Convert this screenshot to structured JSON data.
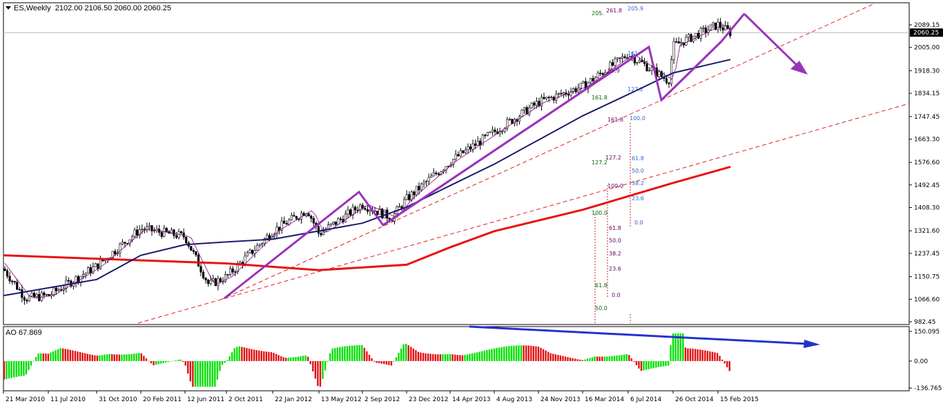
{
  "header": {
    "symbol": "ES,Weekly",
    "ohlc": "2102.00 2106.50 2060.00 2060.25"
  },
  "ao": {
    "label": "AO 67.869",
    "ticks": [
      "150.095",
      "0.00",
      "-136.765"
    ]
  },
  "price": {
    "current_label": "2060.25",
    "current_value": 2060.25
  },
  "colors": {
    "up_bar": "#00e000",
    "down_bar": "#e01010",
    "ma200": "#e81010",
    "ma50": "#1a1a6e",
    "ma_fast": "#800080",
    "pattern": "#9933bb",
    "trend_arrow": "#2233cc",
    "trendline": "#e02020",
    "fib_green": "#006600",
    "fib_purple": "#660066",
    "fib_blue": "#3366cc"
  },
  "chart_data": {
    "type": "line",
    "x_ticks": [
      "21 Mar 2010",
      "11 Jul 2010",
      "31 Oct 2010",
      "20 Feb 2011",
      "12 Jun 2011",
      "2 Oct 2011",
      "22 Jan 2012",
      "13 May 2012",
      "2 Sep 2012",
      "23 Dec 2012",
      "14 Apr 2013",
      "4 Aug 2013",
      "24 Nov 2013",
      "16 Mar 2014",
      "6 Jul 2014",
      "26 Oct 2014",
      "15 Feb 2015"
    ],
    "y_ticks": [
      "2089.15",
      "2005.00",
      "1918.30",
      "1834.15",
      "1747.45",
      "1663.30",
      "1576.60",
      "1492.45",
      "1408.30",
      "1321.60",
      "1237.45",
      "1150.75",
      "1066.60",
      "982.45"
    ],
    "ylim": [
      982.45,
      2089.15
    ],
    "price_path": [
      [
        "21 Mar 2010",
        1180
      ],
      [
        "May 2010",
        1070
      ],
      [
        "11 Jul 2010",
        1080
      ],
      [
        "31 Oct 2010",
        1190
      ],
      [
        "20 Feb 2011",
        1330
      ],
      [
        "12 Jun 2011",
        1300
      ],
      [
        "Aug 2011",
        1120
      ],
      [
        "2 Oct 2011",
        1150
      ],
      [
        "22 Jan 2012",
        1320
      ],
      [
        "Apr 2012",
        1400
      ],
      [
        "13 May 2012",
        1310
      ],
      [
        "2 Sep 2012",
        1420
      ],
      [
        "Nov 2012",
        1370
      ],
      [
        "23 Dec 2012",
        1440
      ],
      [
        "14 Apr 2013",
        1580
      ],
      [
        "4 Aug 2013",
        1690
      ],
      [
        "24 Nov 2013",
        1800
      ],
      [
        "16 Mar 2014",
        1860
      ],
      [
        "6 Jul 2014",
        1980
      ],
      [
        "Oct 2014",
        1880
      ],
      [
        "26 Oct 2014",
        2010
      ],
      [
        "15 Feb 2015",
        2090
      ],
      [
        "Mar 2015",
        2060
      ]
    ],
    "series": [
      {
        "name": "ma200",
        "values": [
          [
            "21 Mar 2010",
            1230
          ],
          [
            "2 Oct 2011",
            1200
          ],
          [
            "13 May 2012",
            1175
          ],
          [
            "23 Dec 2012",
            1195
          ],
          [
            "14 Apr 2013",
            1260
          ],
          [
            "4 Aug 2013",
            1320
          ],
          [
            "16 Mar 2014",
            1400
          ],
          [
            "26 Oct 2014",
            1500
          ],
          [
            "Mar 2015",
            1560
          ]
        ]
      },
      {
        "name": "ma50",
        "values": [
          [
            "21 Mar 2010",
            1080
          ],
          [
            "31 Oct 2010",
            1140
          ],
          [
            "20 Feb 2011",
            1230
          ],
          [
            "12 Jun 2011",
            1270
          ],
          [
            "2 Oct 2011",
            1280
          ],
          [
            "22 Jan 2012",
            1290
          ],
          [
            "2 Sep 2012",
            1350
          ],
          [
            "23 Dec 2012",
            1410
          ],
          [
            "14 Apr 2013",
            1490
          ],
          [
            "4 Aug 2013",
            1570
          ],
          [
            "24 Nov 2013",
            1660
          ],
          [
            "16 Mar 2014",
            1750
          ],
          [
            "6 Jul 2014",
            1830
          ],
          [
            "26 Oct 2014",
            1910
          ],
          [
            "Mar 2015",
            1960
          ]
        ]
      }
    ],
    "fib_labels": {
      "green": [
        "205.",
        "161.8",
        "127.2",
        "100.0",
        "61.8",
        "50.0"
      ],
      "purple": [
        "261.8",
        "161.8",
        "127.2",
        "100.0",
        "61.8",
        "50.0",
        "38.2",
        "23.6",
        "0.0",
        "85.9"
      ],
      "blue": [
        "205.9",
        "161.",
        "127.2",
        "100.0",
        "61.8",
        "50.0",
        "38.2",
        "23.6",
        "0.0"
      ]
    },
    "ao_ylim": [
      -136.765,
      150.095
    ]
  }
}
